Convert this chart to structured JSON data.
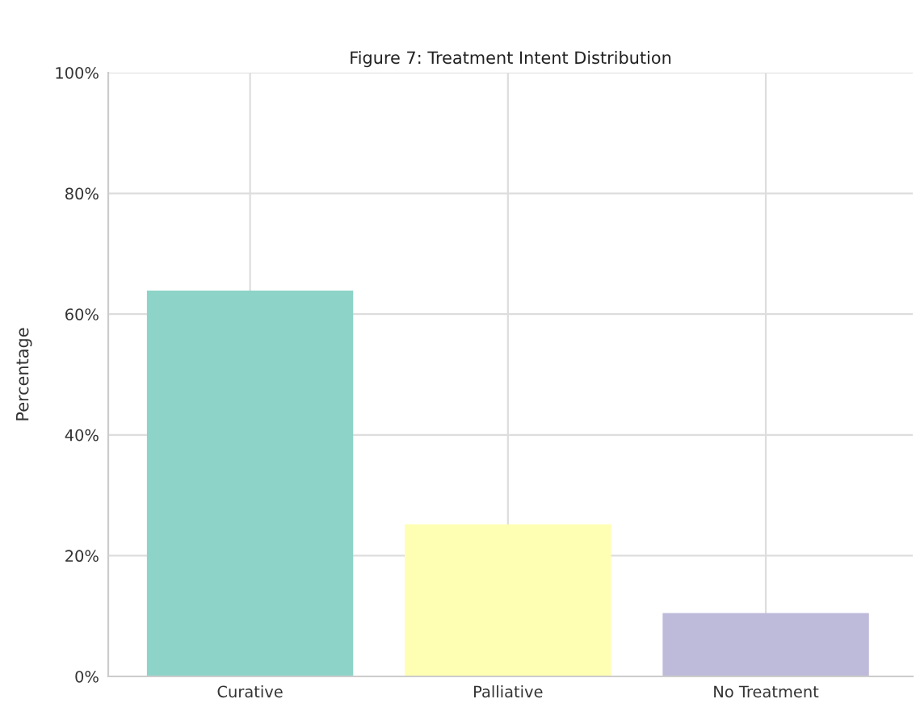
{
  "chart_data": {
    "type": "bar",
    "title": "Figure 7: Treatment Intent Distribution",
    "ylabel": "Percentage",
    "categories": [
      "Curative",
      "Palliative",
      "No Treatment"
    ],
    "values": [
      63.9,
      25.2,
      10.5
    ],
    "colors": [
      "#8dd3c7",
      "#ffffb3",
      "#bebada"
    ],
    "ylim": [
      0,
      100
    ],
    "yticks": [
      {
        "value": 0,
        "label": "0%"
      },
      {
        "value": 20,
        "label": "20%"
      },
      {
        "value": 40,
        "label": "40%"
      },
      {
        "value": 60,
        "label": "60%"
      },
      {
        "value": 80,
        "label": "80%"
      },
      {
        "value": 100,
        "label": "100%"
      }
    ],
    "grid": true
  }
}
